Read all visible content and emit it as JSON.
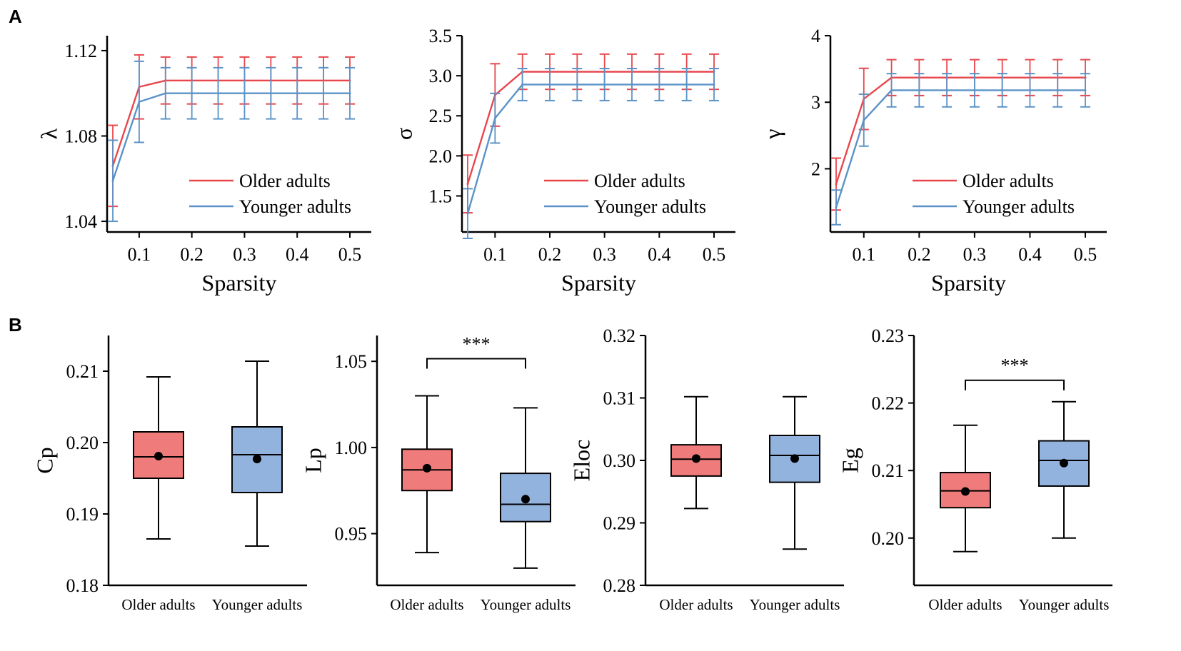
{
  "panel_labels": {
    "a": "A",
    "b": "B"
  },
  "colors": {
    "older": "#e8474c",
    "younger": "#5b93c7",
    "older_fill": "#f07b7b",
    "younger_fill": "#93b3df",
    "axis": "#000000"
  },
  "chart_data": [
    {
      "id": "lambda",
      "type": "line",
      "panel": "A",
      "xlabel": "Sparsity",
      "ylabel": "λ",
      "xlim": [
        0.05,
        0.5
      ],
      "ylim": [
        1.035,
        1.127
      ],
      "xticks": [
        0.1,
        0.2,
        0.3,
        0.4,
        0.5
      ],
      "xtick_labels": [
        "0.1",
        "0.2",
        "0.3",
        "0.4",
        "0.5"
      ],
      "yticks": [
        1.04,
        1.08,
        1.12
      ],
      "ytick_labels": [
        "1.04",
        "1.08",
        "1.12"
      ],
      "x": [
        0.05,
        0.1,
        0.15,
        0.2,
        0.25,
        0.3,
        0.35,
        0.4,
        0.45,
        0.5
      ],
      "legend_position": "bottom-right",
      "series": [
        {
          "name": "Older adults",
          "values": [
            1.066,
            1.103,
            1.106,
            1.106,
            1.106,
            1.106,
            1.106,
            1.106,
            1.106,
            1.106
          ],
          "errors": [
            0.019,
            0.015,
            0.011,
            0.011,
            0.011,
            0.011,
            0.011,
            0.011,
            0.011,
            0.011
          ]
        },
        {
          "name": "Younger adults",
          "values": [
            1.059,
            1.096,
            1.1,
            1.1,
            1.1,
            1.1,
            1.1,
            1.1,
            1.1,
            1.1
          ],
          "errors": [
            0.019,
            0.019,
            0.012,
            0.012,
            0.012,
            0.012,
            0.012,
            0.012,
            0.012,
            0.012
          ]
        }
      ]
    },
    {
      "id": "sigma",
      "type": "line",
      "panel": "A",
      "xlabel": "Sparsity",
      "ylabel": "σ",
      "xlim": [
        0.05,
        0.5
      ],
      "ylim": [
        1.05,
        3.5
      ],
      "xticks": [
        0.1,
        0.2,
        0.3,
        0.4,
        0.5
      ],
      "xtick_labels": [
        "0.1",
        "0.2",
        "0.3",
        "0.4",
        "0.5"
      ],
      "yticks": [
        1.5,
        2.0,
        2.5,
        3.0,
        3.5
      ],
      "ytick_labels": [
        "1.5",
        "2.0",
        "2.5",
        "3.0",
        "3.5"
      ],
      "x": [
        0.05,
        0.1,
        0.15,
        0.2,
        0.25,
        0.3,
        0.35,
        0.4,
        0.45,
        0.5
      ],
      "legend_position": "bottom-right",
      "series": [
        {
          "name": "Older adults",
          "values": [
            1.65,
            2.76,
            3.05,
            3.05,
            3.05,
            3.05,
            3.05,
            3.05,
            3.05,
            3.05
          ],
          "errors": [
            0.36,
            0.39,
            0.22,
            0.22,
            0.22,
            0.22,
            0.22,
            0.22,
            0.22,
            0.22
          ]
        },
        {
          "name": "Younger adults",
          "values": [
            1.28,
            2.47,
            2.89,
            2.89,
            2.89,
            2.89,
            2.89,
            2.89,
            2.89,
            2.89
          ],
          "errors": [
            0.31,
            0.31,
            0.2,
            0.2,
            0.2,
            0.2,
            0.2,
            0.2,
            0.2,
            0.2
          ]
        }
      ]
    },
    {
      "id": "gamma",
      "type": "line",
      "panel": "A",
      "xlabel": "Sparsity",
      "ylabel": "γ",
      "xlim": [
        0.05,
        0.5
      ],
      "ylim": [
        1.05,
        4.0
      ],
      "xticks": [
        0.1,
        0.2,
        0.3,
        0.4,
        0.5
      ],
      "xtick_labels": [
        "0.1",
        "0.2",
        "0.3",
        "0.4",
        "0.5"
      ],
      "yticks": [
        2,
        3,
        4
      ],
      "ytick_labels": [
        "2",
        "3",
        "4"
      ],
      "x": [
        0.05,
        0.1,
        0.15,
        0.2,
        0.25,
        0.3,
        0.35,
        0.4,
        0.45,
        0.5
      ],
      "legend_position": "bottom-right",
      "series": [
        {
          "name": "Older adults",
          "values": [
            1.77,
            3.05,
            3.37,
            3.37,
            3.37,
            3.37,
            3.37,
            3.37,
            3.37,
            3.37
          ],
          "errors": [
            0.39,
            0.46,
            0.27,
            0.27,
            0.27,
            0.27,
            0.27,
            0.27,
            0.27,
            0.27
          ]
        },
        {
          "name": "Younger adults",
          "values": [
            1.42,
            2.73,
            3.18,
            3.18,
            3.18,
            3.18,
            3.18,
            3.18,
            3.18,
            3.18
          ],
          "errors": [
            0.26,
            0.39,
            0.25,
            0.25,
            0.25,
            0.25,
            0.25,
            0.25,
            0.25,
            0.25
          ]
        }
      ]
    },
    {
      "id": "cp",
      "type": "box",
      "panel": "B",
      "ylabel": "Cp",
      "ylim": [
        0.18,
        0.215
      ],
      "yticks": [
        0.18,
        0.19,
        0.2,
        0.21
      ],
      "ytick_labels": [
        "0.18",
        "0.19",
        "0.20",
        "0.21"
      ],
      "categories": [
        "Older adults",
        "Younger adults"
      ],
      "boxes": [
        {
          "min": 0.1865,
          "q1": 0.195,
          "median": 0.198,
          "q3": 0.2015,
          "max": 0.2092,
          "mean": 0.1981
        },
        {
          "min": 0.1855,
          "q1": 0.193,
          "median": 0.1983,
          "q3": 0.2022,
          "max": 0.2114,
          "mean": 0.1977
        }
      ],
      "significance": ""
    },
    {
      "id": "lp",
      "type": "box",
      "panel": "B",
      "ylabel": "Lp",
      "ylim": [
        0.92,
        1.065
      ],
      "yticks": [
        0.95,
        1.0,
        1.05
      ],
      "ytick_labels": [
        "0.95",
        "1.00",
        "1.05"
      ],
      "categories": [
        "Older adults",
        "Younger adults"
      ],
      "boxes": [
        {
          "min": 0.939,
          "q1": 0.975,
          "median": 0.987,
          "q3": 0.999,
          "max": 1.03,
          "mean": 0.988
        },
        {
          "min": 0.93,
          "q1": 0.957,
          "median": 0.967,
          "q3": 0.985,
          "max": 1.023,
          "mean": 0.97
        }
      ],
      "significance": "***"
    },
    {
      "id": "eloc",
      "type": "box",
      "panel": "B",
      "ylabel": "Eloc",
      "ylim": [
        0.28,
        0.32
      ],
      "yticks": [
        0.28,
        0.29,
        0.3,
        0.31,
        0.32
      ],
      "ytick_labels": [
        "0.28",
        "0.29",
        "0.30",
        "0.31",
        "0.32"
      ],
      "categories": [
        "Older adults",
        "Younger adults"
      ],
      "boxes": [
        {
          "min": 0.2923,
          "q1": 0.2975,
          "median": 0.3002,
          "q3": 0.3025,
          "max": 0.3102,
          "mean": 0.3003
        },
        {
          "min": 0.2858,
          "q1": 0.2965,
          "median": 0.3008,
          "q3": 0.304,
          "max": 0.3102,
          "mean": 0.3003
        }
      ],
      "significance": ""
    },
    {
      "id": "eg",
      "type": "box",
      "panel": "B",
      "ylabel": "Eg",
      "ylim": [
        0.193,
        0.23
      ],
      "yticks": [
        0.2,
        0.21,
        0.22,
        0.23
      ],
      "ytick_labels": [
        "0.20",
        "0.21",
        "0.22",
        "0.23"
      ],
      "categories": [
        "Older adults",
        "Younger adults"
      ],
      "boxes": [
        {
          "min": 0.198,
          "q1": 0.2045,
          "median": 0.207,
          "q3": 0.2097,
          "max": 0.2167,
          "mean": 0.2069
        },
        {
          "min": 0.2,
          "q1": 0.2077,
          "median": 0.2115,
          "q3": 0.2144,
          "max": 0.2202,
          "mean": 0.2111
        }
      ],
      "significance": "***"
    }
  ]
}
